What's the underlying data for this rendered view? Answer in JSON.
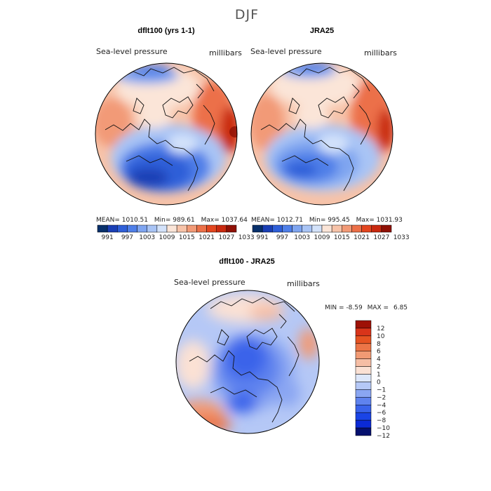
{
  "page_title": "DJF",
  "colors": {
    "abs_scale": [
      "#08306b",
      "#1a3fb5",
      "#2f5fd8",
      "#4f7fe8",
      "#7fa5f0",
      "#a9c4f5",
      "#d3e2fa",
      "#fbe5d8",
      "#f7c3a9",
      "#f29a77",
      "#ec7048",
      "#e3461f",
      "#c9290f",
      "#8f1005"
    ],
    "diff_scale": [
      "#05106e",
      "#0b2ad6",
      "#1a44e6",
      "#3a63ea",
      "#5f83ee",
      "#8aa6f2",
      "#b5c8f6",
      "#dde7fa",
      "#fbe1d4",
      "#f6bea5",
      "#f19a74",
      "#ec7547",
      "#e65322",
      "#d9341a",
      "#9e1106"
    ]
  },
  "chart_data": [
    {
      "type": "heatmap",
      "projection": "polar-stereographic",
      "title": "dflt100 (yrs 1-1)",
      "variable": "Sea-level pressure",
      "units": "millibars",
      "stats": {
        "mean": "1010.51",
        "min": "989.61",
        "max": "1037.64"
      },
      "stats_labels": {
        "mean": "MEAN=",
        "min": "Min=",
        "max": "Max="
      },
      "colorbar_levels": [
        "991",
        "997",
        "1003",
        "1009",
        "1015",
        "1021",
        "1027",
        "1033"
      ]
    },
    {
      "type": "heatmap",
      "projection": "polar-stereographic",
      "title": "JRA25",
      "variable": "Sea-level pressure",
      "units": "millibars",
      "stats": {
        "mean": "1012.71",
        "min": "995.45",
        "max": "1031.93"
      },
      "stats_labels": {
        "mean": "MEAN=",
        "min": "Min=",
        "max": "Max="
      },
      "colorbar_levels": [
        "991",
        "997",
        "1003",
        "1009",
        "1015",
        "1021",
        "1027",
        "1033"
      ]
    },
    {
      "type": "heatmap",
      "projection": "polar-stereographic",
      "title": "dflt100 - JRA25",
      "variable": "Sea-level pressure",
      "units": "millibars",
      "stats": {
        "min": "-8.59",
        "max": "6.85"
      },
      "stats_labels": {
        "min": "MIN =",
        "max": "MAX ="
      },
      "colorbar_levels": [
        "12",
        "10",
        "8",
        "6",
        "4",
        "2",
        "1",
        "0",
        "−1",
        "−2",
        "−4",
        "−6",
        "−8",
        "−10",
        "−12"
      ]
    }
  ]
}
